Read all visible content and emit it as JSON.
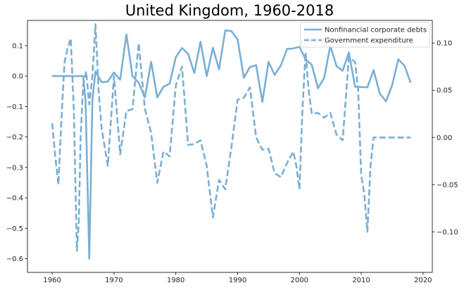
{
  "chart_data": {
    "type": "line",
    "title": "United Kingdom, 1960-2018",
    "xlabel": "",
    "ylabel_left": "",
    "ylabel_right": "",
    "xlim": [
      1956,
      2021.5
    ],
    "ylim_left": [
      -0.645,
      0.183
    ],
    "ylim_right": [
      -0.143,
      0.124
    ],
    "x_ticks": [
      1960,
      1970,
      1980,
      1990,
      2000,
      2010,
      2020
    ],
    "y_ticks_left": [
      0.1,
      0.0,
      -0.1,
      -0.2,
      -0.3,
      -0.4,
      -0.5,
      -0.6
    ],
    "y_ticks_right": [
      0.1,
      0.05,
      0.0,
      -0.05,
      -0.1
    ],
    "y_tick_labels_left": [
      "0.1",
      "0.0",
      "−0.1",
      "−0.2",
      "−0.3",
      "−0.4",
      "−0.5",
      "−0.6"
    ],
    "y_tick_labels_right": [
      "0.10",
      "0.05",
      "0.00",
      "−0.05",
      "−0.10"
    ],
    "grid": false,
    "legend_position": "top-right",
    "series_color": "#7bafd4",
    "series": [
      {
        "name": "Nonfinancial corporate debts",
        "axis": "left",
        "style": "solid",
        "x": [
          1960,
          1961,
          1962,
          1963,
          1964,
          1965,
          1965.4,
          1966,
          1966.5,
          1967,
          1968,
          1969,
          1970,
          1971,
          1972,
          1973,
          1974,
          1975,
          1976,
          1977,
          1978,
          1979,
          1980,
          1981,
          1982,
          1983,
          1984,
          1985,
          1986,
          1987,
          1988,
          1989,
          1990,
          1991,
          1992,
          1993,
          1994,
          1995,
          1996,
          1997,
          1998,
          1999,
          2000,
          2001,
          2002,
          2003,
          2004,
          2005,
          2006,
          2007,
          2008,
          2009,
          2010,
          2011,
          2012,
          2013,
          2014,
          2015,
          2016,
          2017,
          2018
        ],
        "values": [
          0.0,
          0.0,
          0.0,
          0.0,
          0.0,
          0.0,
          -0.08,
          -0.6,
          -0.08,
          0.015,
          -0.02,
          -0.018,
          0.012,
          -0.012,
          0.137,
          0.0,
          -0.022,
          -0.07,
          0.047,
          -0.07,
          -0.035,
          -0.025,
          0.062,
          0.092,
          0.073,
          0.01,
          0.113,
          0.0,
          0.093,
          0.022,
          0.15,
          0.148,
          0.12,
          -0.005,
          0.03,
          0.036,
          -0.085,
          0.047,
          0.004,
          0.035,
          0.089,
          0.091,
          0.096,
          0.055,
          0.037,
          -0.04,
          -0.006,
          0.1,
          0.033,
          0.018,
          0.078,
          -0.035,
          -0.036,
          -0.037,
          0.02,
          -0.057,
          -0.083,
          -0.03,
          0.055,
          0.034,
          -0.022
        ]
      },
      {
        "name": "Government expenditure",
        "axis": "right",
        "style": "dashed",
        "x": [
          1960,
          1960.5,
          1961,
          1961.5,
          1962,
          1962.5,
          1963,
          1963.5,
          1964,
          1964.3,
          1964.6,
          1965,
          1965.5,
          1966,
          1966.5,
          1967,
          1967.5,
          1968,
          1969,
          1970,
          1971,
          1972,
          1973,
          1974,
          1975,
          1976,
          1977,
          1978,
          1979,
          1980,
          1981,
          1982,
          1983,
          1984,
          1985,
          1986,
          1987,
          1988,
          1989,
          1990,
          1991,
          1992,
          1993,
          1994,
          1995,
          1996,
          1997,
          1998,
          1999,
          1999.5,
          2000,
          2000.5,
          2001,
          2001.5,
          2002,
          2003,
          2004,
          2005,
          2006,
          2007,
          2008,
          2009,
          2009.5,
          2010,
          2010.5,
          2011,
          2011.5,
          2012,
          2013,
          2014,
          2015,
          2016,
          2017,
          2018
        ],
        "values": [
          0.015,
          -0.02,
          -0.05,
          0.02,
          0.08,
          0.095,
          0.105,
          0.03,
          -0.12,
          -0.09,
          0.0,
          0.055,
          0.07,
          0.035,
          0.065,
          0.12,
          0.05,
          0.01,
          -0.03,
          0.065,
          -0.018,
          0.028,
          0.03,
          0.1,
          0.03,
          0.005,
          -0.048,
          -0.015,
          -0.02,
          0.055,
          0.075,
          -0.008,
          -0.007,
          -0.003,
          -0.03,
          -0.085,
          -0.045,
          -0.055,
          -0.01,
          0.04,
          0.042,
          0.053,
          0.0,
          -0.013,
          -0.012,
          -0.038,
          -0.042,
          -0.027,
          -0.015,
          -0.03,
          -0.055,
          0.03,
          0.09,
          0.05,
          0.025,
          0.026,
          0.021,
          0.026,
          0.003,
          -0.003,
          0.085,
          0.08,
          0.05,
          -0.04,
          -0.06,
          -0.1,
          -0.03,
          0.0,
          0.0,
          0.0,
          0.0,
          0.0,
          0.0,
          0.0
        ]
      }
    ]
  }
}
